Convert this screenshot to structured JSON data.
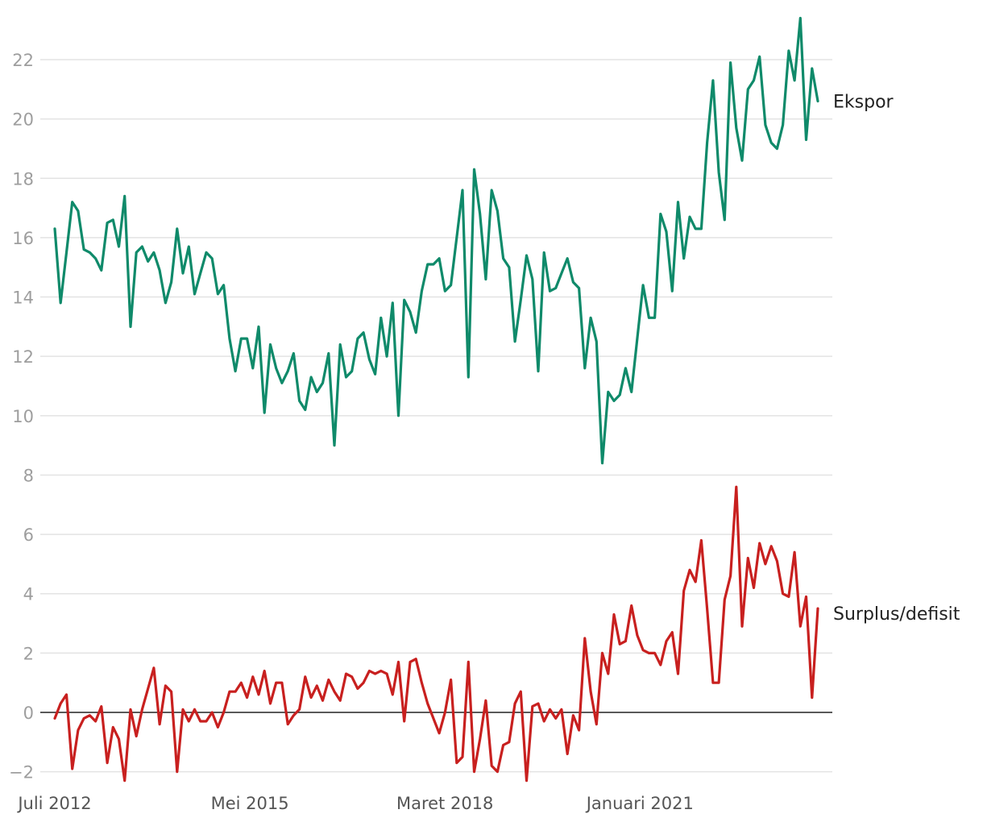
{
  "chart_data": {
    "type": "line",
    "title": "",
    "xlabel": "",
    "ylabel": "",
    "ylim": [
      -2.6,
      23.6
    ],
    "y_ticks": [
      -2,
      0,
      2,
      4,
      6,
      8,
      10,
      12,
      14,
      16,
      18,
      20,
      22
    ],
    "y_tick_labels": [
      "−2",
      "0",
      "2",
      "4",
      "6",
      "8",
      "10",
      "12",
      "14",
      "16",
      "18",
      "20",
      "22"
    ],
    "x_start": "2012-07",
    "x_end": "2023-08",
    "x_tick_dates": [
      "2012-07",
      "2015-05",
      "2018-03",
      "2021-01"
    ],
    "x_tick_labels": [
      "Juli 2012",
      "Mei 2015",
      "Maret 2018",
      "Januari 2021"
    ],
    "grid": true,
    "zero_line": true,
    "colors": {
      "ekspor": "#0f8a6a",
      "surplus": "#c8201f",
      "grid": "#e3e3e3",
      "zero": "#222222"
    },
    "series": [
      {
        "name": "Ekspor",
        "values": [
          16.3,
          13.8,
          15.5,
          17.2,
          16.9,
          15.6,
          15.5,
          15.3,
          14.9,
          16.5,
          16.6,
          15.7,
          17.4,
          13.0,
          15.5,
          15.7,
          15.2,
          15.5,
          14.9,
          13.8,
          14.5,
          16.3,
          14.8,
          15.7,
          14.1,
          14.8,
          15.5,
          15.3,
          14.1,
          14.4,
          12.6,
          11.5,
          12.6,
          12.6,
          11.6,
          13.0,
          10.1,
          12.4,
          11.6,
          11.1,
          11.5,
          12.1,
          10.5,
          10.2,
          11.3,
          10.8,
          11.1,
          12.1,
          9.0,
          12.4,
          11.3,
          11.5,
          12.6,
          12.8,
          11.9,
          11.4,
          13.3,
          12.0,
          13.8,
          10.0,
          13.9,
          13.5,
          12.8,
          14.2,
          15.1,
          15.1,
          15.3,
          14.2,
          14.4,
          16.0,
          17.6,
          11.3,
          18.3,
          16.8,
          14.6,
          17.6,
          16.9,
          15.3,
          15.0,
          12.5,
          13.9,
          15.4,
          14.6,
          11.5,
          15.5,
          14.2,
          14.3,
          14.8,
          15.3,
          14.5,
          14.3,
          11.6,
          13.3,
          12.5,
          8.4,
          10.8,
          10.5,
          10.7,
          11.6,
          10.8,
          12.6,
          14.4,
          13.3,
          13.3,
          16.8,
          16.2,
          14.2,
          17.2,
          15.3,
          16.7,
          16.3,
          16.3,
          19.2,
          21.3,
          18.2,
          16.6,
          21.9,
          19.7,
          18.6,
          21.0,
          21.3,
          22.1,
          19.8,
          19.2,
          19.0,
          19.8,
          22.3,
          21.3,
          23.4,
          19.3,
          21.7,
          20.6
        ],
        "label": "Ekspor"
      },
      {
        "name": "Surplus/defisit",
        "values": [
          -0.2,
          0.3,
          0.6,
          -1.9,
          -0.6,
          -0.2,
          -0.1,
          -0.3,
          0.2,
          -1.7,
          -0.5,
          -0.9,
          -2.3,
          0.1,
          -0.8,
          0.1,
          0.8,
          1.5,
          -0.4,
          0.9,
          0.7,
          -2.0,
          0.1,
          -0.3,
          0.1,
          -0.3,
          -0.3,
          0.0,
          -0.5,
          0.0,
          0.7,
          0.7,
          1.0,
          0.5,
          1.2,
          0.6,
          1.4,
          0.3,
          1.0,
          1.0,
          -0.4,
          -0.1,
          0.1,
          1.2,
          0.5,
          0.9,
          0.4,
          1.1,
          0.7,
          0.4,
          1.3,
          1.2,
          0.8,
          1.0,
          1.4,
          1.3,
          1.4,
          1.3,
          0.6,
          1.7,
          -0.3,
          1.7,
          1.8,
          1.0,
          0.3,
          -0.2,
          -0.7,
          0.0,
          1.1,
          -1.7,
          -1.5,
          1.7,
          -2.0,
          -0.9,
          0.4,
          -1.8,
          -2.0,
          -1.1,
          -1.0,
          0.3,
          0.7,
          -2.3,
          0.2,
          0.3,
          -0.3,
          0.1,
          -0.2,
          0.1,
          -1.4,
          -0.1,
          -0.6,
          2.5,
          0.7,
          -0.4,
          2.0,
          1.3,
          3.3,
          2.3,
          2.4,
          3.6,
          2.6,
          2.1,
          2.0,
          2.0,
          1.6,
          2.4,
          2.7,
          1.3,
          4.1,
          4.8,
          4.4,
          5.8,
          3.5,
          1.0,
          1.0,
          3.8,
          4.6,
          7.6,
          2.9,
          5.2,
          4.2,
          5.7,
          5.0,
          5.6,
          5.1,
          4.0,
          3.9,
          5.4,
          2.9,
          3.9,
          0.5,
          3.5
        ],
        "label": "Surplus/defisit"
      }
    ]
  }
}
